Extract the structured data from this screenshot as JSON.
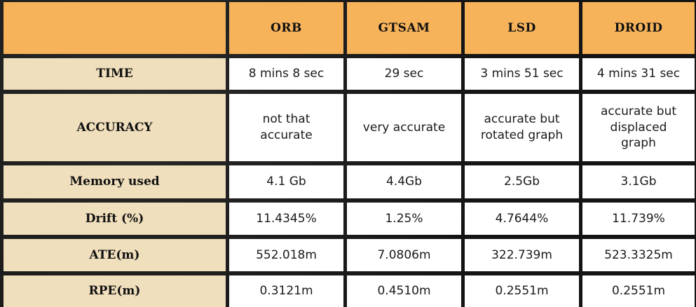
{
  "table": {
    "corner": "",
    "columns": [
      "ORB",
      "GTSAM",
      "LSD",
      "DROID"
    ],
    "rows": [
      {
        "label": "TIME",
        "values": [
          "8 mins 8 sec",
          "29 sec",
          "3 mins 51 sec",
          "4 mins 31 sec"
        ]
      },
      {
        "label": "ACCURACY",
        "values": [
          "not that accurate",
          "very accurate",
          "accurate but rotated graph",
          "accurate but displaced graph"
        ]
      },
      {
        "label": "Memory used",
        "values": [
          "4.1 Gb",
          "4.4Gb",
          "2.5Gb",
          "3.1Gb"
        ]
      },
      {
        "label": "Drift (%)",
        "values": [
          "11.4345%",
          "1.25%",
          "4.7644%",
          "11.739%"
        ]
      },
      {
        "label": "ATE(m)",
        "values": [
          "552.018m",
          "7.0806m",
          "322.739m",
          "523.3325m"
        ]
      },
      {
        "label": "RPE(m)",
        "values": [
          "0.3121m",
          "0.4510m",
          "0.2551m",
          "0.2551m"
        ]
      }
    ]
  },
  "colors": {
    "header_bg": "#f7b35a",
    "row_label_bg": "#f0dfbd",
    "cell_bg": "#ffffff",
    "border": "#141414"
  }
}
